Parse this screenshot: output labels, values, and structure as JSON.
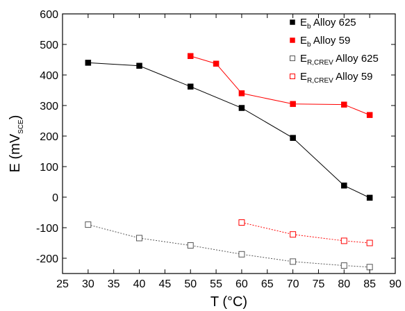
{
  "chart_data": {
    "type": "line",
    "xlabel": "T (°C)",
    "ylabel_main": "E (mV",
    "ylabel_sub": "SCE",
    "ylabel_close": ")",
    "xlim": [
      25,
      90
    ],
    "ylim": [
      -250,
      600
    ],
    "xticks": [
      25,
      30,
      35,
      40,
      45,
      50,
      55,
      60,
      65,
      70,
      75,
      80,
      85,
      90
    ],
    "yticks": [
      -200,
      -100,
      0,
      100,
      200,
      300,
      400,
      500,
      600
    ],
    "grid": false,
    "legend_position": "top-right",
    "series": [
      {
        "main": "E",
        "sub": "b",
        "alloy": " Alloy 625",
        "color": "#000000",
        "marker": "filled-square",
        "line": "solid",
        "x": [
          30,
          40,
          50,
          60,
          70,
          80,
          85
        ],
        "y": [
          440,
          430,
          362,
          292,
          194,
          38,
          -2
        ]
      },
      {
        "main": "E",
        "sub": "b",
        "alloy": " Alloy 59",
        "color": "#ff0000",
        "marker": "filled-square",
        "line": "solid",
        "x": [
          50,
          55,
          60,
          70,
          80,
          85
        ],
        "y": [
          462,
          437,
          340,
          305,
          303,
          269
        ]
      },
      {
        "main": "E",
        "sub": "R,CREV",
        "alloy": " Alloy 625",
        "color": "#555555",
        "marker": "open-square",
        "line": "dotted",
        "x": [
          30,
          40,
          50,
          60,
          70,
          80,
          85
        ],
        "y": [
          -90,
          -134,
          -158,
          -187,
          -211,
          -224,
          -229
        ]
      },
      {
        "main": "E",
        "sub": "R,CREV",
        "alloy": " Alloy 59",
        "color": "#ff0000",
        "marker": "open-square",
        "line": "dotted",
        "x": [
          60,
          70,
          80,
          85
        ],
        "y": [
          -83,
          -122,
          -143,
          -150
        ]
      }
    ]
  }
}
